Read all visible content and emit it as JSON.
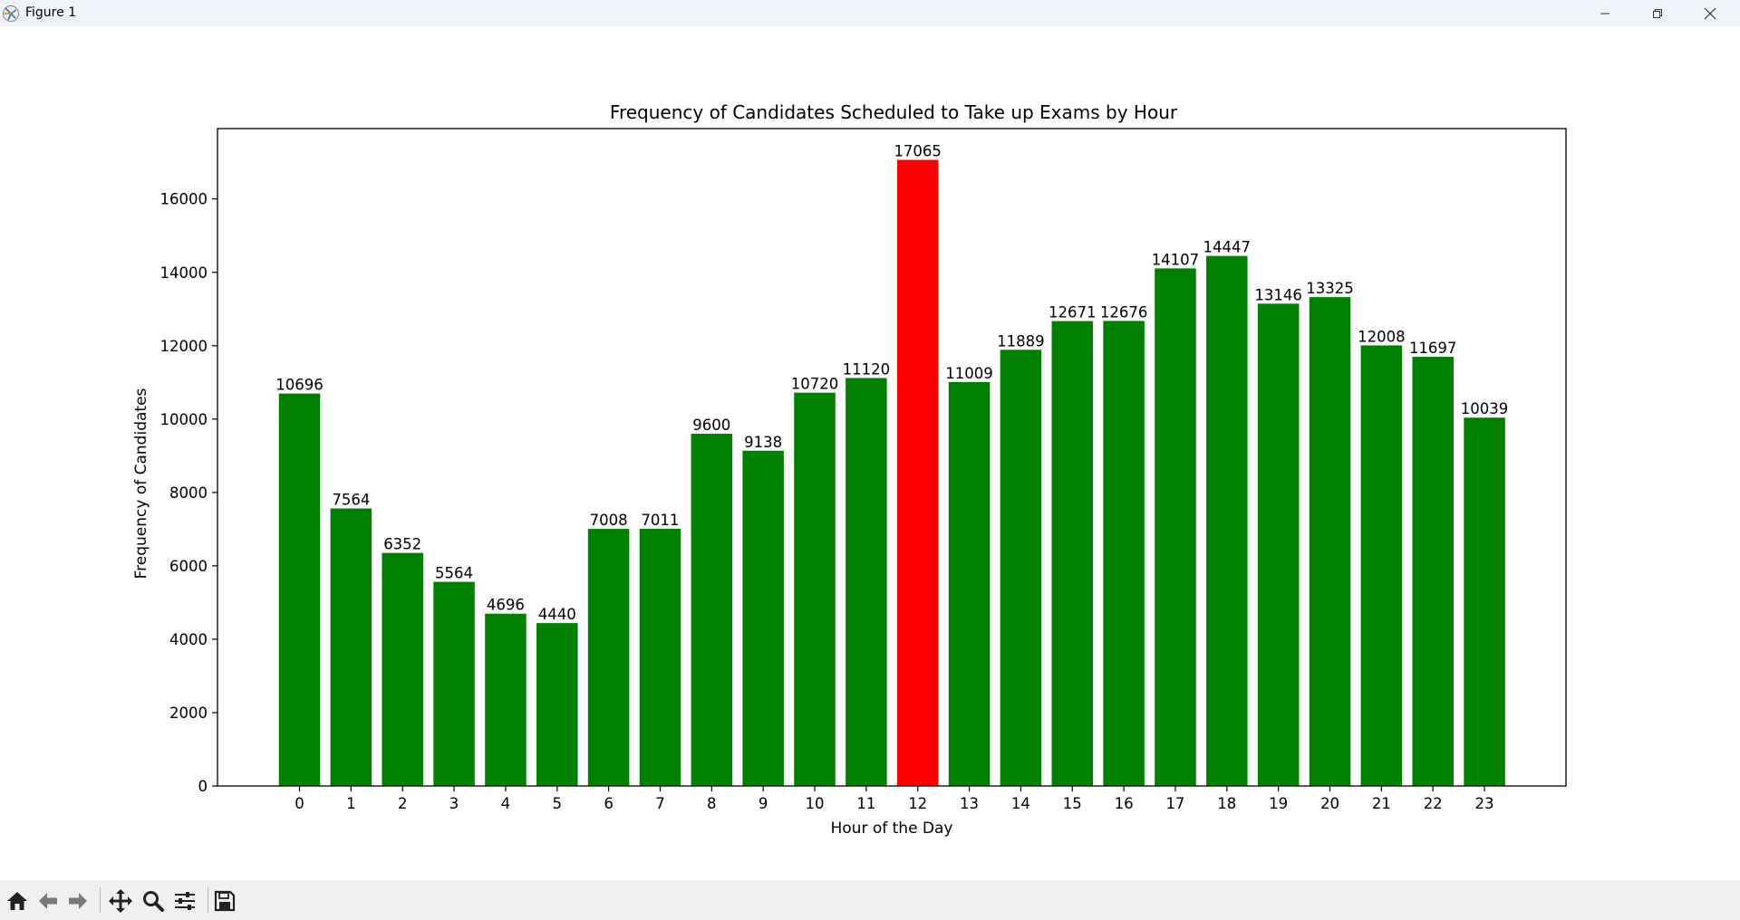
{
  "window": {
    "title": "Figure 1"
  },
  "colors": {
    "bar": "#008000",
    "highlight": "#ff0000",
    "titlebar": "#eef4f9",
    "toolbar": "#f0f0f0"
  },
  "toolbar": {
    "icons": [
      "home-icon",
      "back-icon",
      "forward-icon",
      "pan-icon",
      "zoom-icon",
      "configure-subplots-icon",
      "save-icon"
    ]
  },
  "chart_data": {
    "type": "bar",
    "title": "Frequency of Candidates Scheduled to Take up Exams by Hour",
    "xlabel": "Hour of the Day",
    "ylabel": "Frequency of Candidates",
    "categories": [
      "0",
      "1",
      "2",
      "3",
      "4",
      "5",
      "6",
      "7",
      "8",
      "9",
      "10",
      "11",
      "12",
      "13",
      "14",
      "15",
      "16",
      "17",
      "18",
      "19",
      "20",
      "21",
      "22",
      "23"
    ],
    "values": [
      10696,
      7564,
      6352,
      5564,
      4696,
      4440,
      7008,
      7011,
      9600,
      9138,
      10720,
      11120,
      17065,
      11009,
      11889,
      12671,
      12676,
      14107,
      14447,
      13146,
      13325,
      12008,
      11697,
      10039
    ],
    "highlight_index": 12,
    "ylim": [
      0,
      17918
    ],
    "yticks": [
      0,
      2000,
      4000,
      6000,
      8000,
      10000,
      12000,
      14000,
      16000
    ],
    "grid": false,
    "legend": "none"
  }
}
